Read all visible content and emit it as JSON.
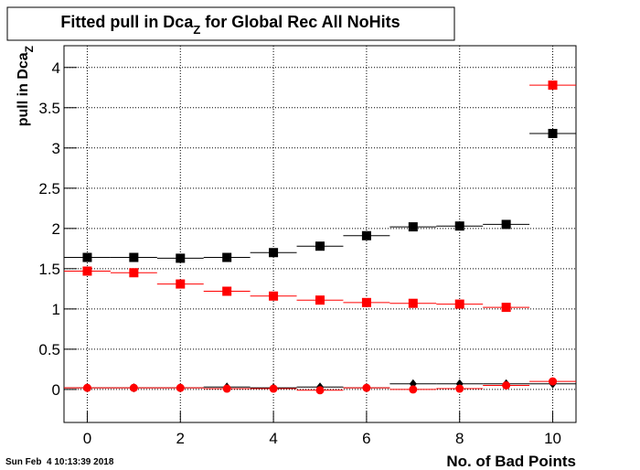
{
  "chart_data": {
    "type": "scatter",
    "title": "Fitted pull in Dca",
    "title_subscript": "Z",
    "title_suffix": " for Global Rec All NoHits",
    "y_label": "pull in Dca",
    "y_label_subscript": "Z",
    "x_label": "No. of Bad Points",
    "timestamp": "Sun Feb  4 10:13:39 2018",
    "x": [
      0,
      1,
      2,
      3,
      4,
      5,
      6,
      7,
      8,
      9,
      10
    ],
    "xlim": [
      -0.5,
      10.5
    ],
    "xticks": [
      0,
      2,
      4,
      6,
      8,
      10
    ],
    "ylim": [
      -0.41,
      4.27
    ],
    "yticks": [
      0,
      0.5,
      1,
      1.5,
      2,
      2.5,
      3,
      3.5,
      4
    ],
    "grid": true,
    "series": [
      {
        "color": "#000000",
        "marker": "square",
        "values": [
          1.64,
          1.64,
          1.63,
          1.64,
          1.7,
          1.78,
          1.91,
          2.02,
          2.03,
          2.05,
          3.18
        ]
      },
      {
        "color": "#ff0000",
        "marker": "square",
        "values": [
          1.47,
          1.45,
          1.31,
          1.22,
          1.16,
          1.11,
          1.08,
          1.07,
          1.06,
          1.02,
          3.78
        ]
      },
      {
        "color": "#000000",
        "marker": "diamond",
        "values": [
          0.02,
          0.02,
          0.02,
          0.03,
          0.02,
          0.03,
          0.02,
          0.07,
          0.07,
          0.07,
          0.07
        ]
      },
      {
        "color": "#ff0000",
        "marker": "circle",
        "values": [
          0.02,
          0.02,
          0.02,
          0.01,
          0.01,
          -0.01,
          0.02,
          0.0,
          0.01,
          0.05,
          0.1
        ]
      }
    ]
  }
}
